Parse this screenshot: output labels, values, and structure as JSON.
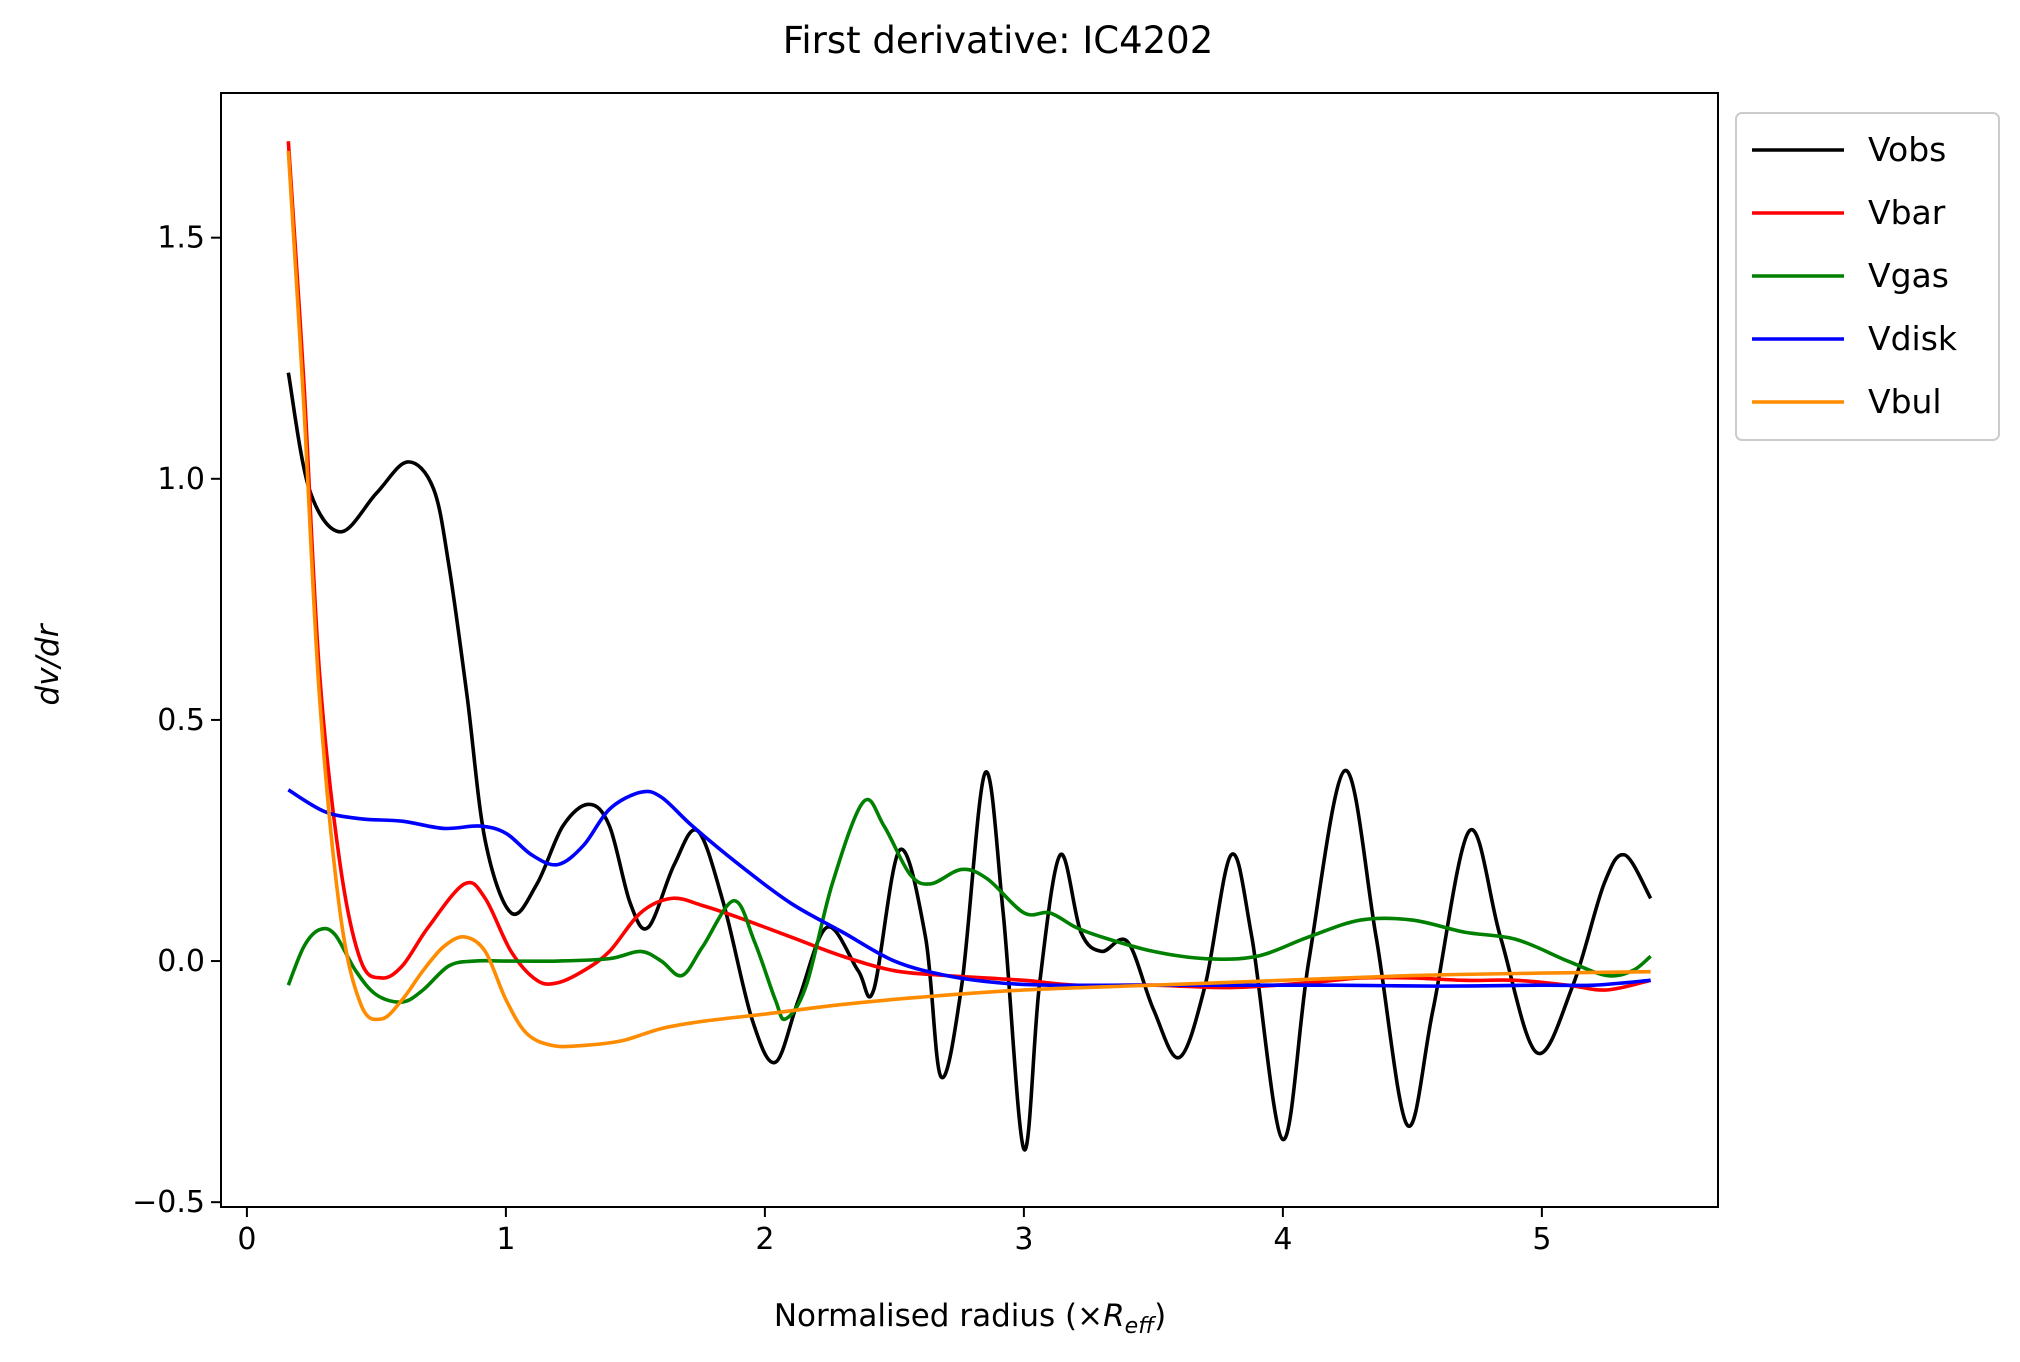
{
  "chart_data": {
    "type": "line",
    "title": "First derivative: IC4202",
    "xlabel": "Normalised radius (×R_eff)",
    "xlabel_parts": {
      "main": "Normalised radius (×",
      "symbol": "R",
      "subscript": "eff",
      "close": ")"
    },
    "ylabel": "dv/dr",
    "xlim": [
      -0.1,
      5.68
    ],
    "ylim": [
      -0.51,
      1.8
    ],
    "xticks": [
      {
        "value": 0,
        "label": "0"
      },
      {
        "value": 1,
        "label": "1"
      },
      {
        "value": 2,
        "label": "2"
      },
      {
        "value": 3,
        "label": "3"
      },
      {
        "value": 4,
        "label": "4"
      },
      {
        "value": 5,
        "label": "5"
      }
    ],
    "yticks": [
      {
        "value": -0.5,
        "label": "−0.5"
      },
      {
        "value": 0.0,
        "label": "0.0"
      },
      {
        "value": 0.5,
        "label": "0.5"
      },
      {
        "value": 1.0,
        "label": "1.0"
      },
      {
        "value": 1.5,
        "label": "1.5"
      }
    ],
    "grid": false,
    "legend_position": "outside-top-right",
    "series": [
      {
        "name": "Vobs",
        "color": "#000000",
        "points": [
          [
            0.16,
            1.22
          ],
          [
            0.24,
            0.98
          ],
          [
            0.36,
            0.89
          ],
          [
            0.5,
            0.97
          ],
          [
            0.62,
            1.035
          ],
          [
            0.72,
            0.98
          ],
          [
            0.78,
            0.82
          ],
          [
            0.85,
            0.55
          ],
          [
            0.92,
            0.25
          ],
          [
            1.02,
            0.1
          ],
          [
            1.12,
            0.16
          ],
          [
            1.22,
            0.28
          ],
          [
            1.32,
            0.325
          ],
          [
            1.4,
            0.28
          ],
          [
            1.48,
            0.12
          ],
          [
            1.55,
            0.07
          ],
          [
            1.65,
            0.2
          ],
          [
            1.74,
            0.27
          ],
          [
            1.84,
            0.12
          ],
          [
            1.95,
            -0.12
          ],
          [
            2.04,
            -0.21
          ],
          [
            2.13,
            -0.08
          ],
          [
            2.24,
            0.07
          ],
          [
            2.36,
            -0.02
          ],
          [
            2.42,
            -0.06
          ],
          [
            2.52,
            0.23
          ],
          [
            2.62,
            0.05
          ],
          [
            2.68,
            -0.24
          ],
          [
            2.76,
            -0.05
          ],
          [
            2.85,
            0.39
          ],
          [
            2.92,
            0.1
          ],
          [
            3.0,
            -0.39
          ],
          [
            3.06,
            -0.05
          ],
          [
            3.14,
            0.22
          ],
          [
            3.22,
            0.06
          ],
          [
            3.3,
            0.02
          ],
          [
            3.4,
            0.04
          ],
          [
            3.5,
            -0.1
          ],
          [
            3.6,
            -0.2
          ],
          [
            3.7,
            -0.05
          ],
          [
            3.8,
            0.22
          ],
          [
            3.88,
            0.05
          ],
          [
            4.0,
            -0.37
          ],
          [
            4.1,
            0.0
          ],
          [
            4.24,
            0.395
          ],
          [
            4.36,
            0.05
          ],
          [
            4.48,
            -0.34
          ],
          [
            4.58,
            -0.1
          ],
          [
            4.72,
            0.27
          ],
          [
            4.84,
            0.05
          ],
          [
            4.98,
            -0.19
          ],
          [
            5.12,
            -0.05
          ],
          [
            5.24,
            0.16
          ],
          [
            5.32,
            0.22
          ],
          [
            5.42,
            0.13
          ]
        ]
      },
      {
        "name": "Vbar",
        "color": "#ff0000",
        "points": [
          [
            0.16,
            1.7
          ],
          [
            0.22,
            1.2
          ],
          [
            0.28,
            0.6
          ],
          [
            0.36,
            0.2
          ],
          [
            0.44,
            0.0
          ],
          [
            0.52,
            -0.035
          ],
          [
            0.6,
            -0.01
          ],
          [
            0.7,
            0.07
          ],
          [
            0.84,
            0.16
          ],
          [
            0.92,
            0.13
          ],
          [
            1.02,
            0.02
          ],
          [
            1.12,
            -0.04
          ],
          [
            1.2,
            -0.045
          ],
          [
            1.3,
            -0.02
          ],
          [
            1.4,
            0.02
          ],
          [
            1.52,
            0.1
          ],
          [
            1.64,
            0.13
          ],
          [
            1.76,
            0.115
          ],
          [
            1.9,
            0.09
          ],
          [
            2.1,
            0.05
          ],
          [
            2.3,
            0.01
          ],
          [
            2.5,
            -0.02
          ],
          [
            2.7,
            -0.03
          ],
          [
            3.0,
            -0.04
          ],
          [
            3.2,
            -0.05
          ],
          [
            3.5,
            -0.05
          ],
          [
            3.8,
            -0.055
          ],
          [
            4.1,
            -0.045
          ],
          [
            4.3,
            -0.035
          ],
          [
            4.5,
            -0.035
          ],
          [
            4.7,
            -0.04
          ],
          [
            4.9,
            -0.04
          ],
          [
            5.1,
            -0.05
          ],
          [
            5.25,
            -0.06
          ],
          [
            5.42,
            -0.04
          ]
        ]
      },
      {
        "name": "Vgas",
        "color": "#008000",
        "points": [
          [
            0.16,
            -0.05
          ],
          [
            0.22,
            0.03
          ],
          [
            0.28,
            0.065
          ],
          [
            0.34,
            0.055
          ],
          [
            0.42,
            -0.02
          ],
          [
            0.5,
            -0.07
          ],
          [
            0.6,
            -0.085
          ],
          [
            0.68,
            -0.06
          ],
          [
            0.78,
            -0.01
          ],
          [
            0.88,
            0.0
          ],
          [
            1.0,
            0.0
          ],
          [
            1.2,
            0.0
          ],
          [
            1.4,
            0.005
          ],
          [
            1.52,
            0.02
          ],
          [
            1.6,
            0.0
          ],
          [
            1.68,
            -0.03
          ],
          [
            1.76,
            0.03
          ],
          [
            1.88,
            0.125
          ],
          [
            1.96,
            0.04
          ],
          [
            2.04,
            -0.08
          ],
          [
            2.08,
            -0.12
          ],
          [
            2.16,
            -0.05
          ],
          [
            2.26,
            0.16
          ],
          [
            2.38,
            0.33
          ],
          [
            2.46,
            0.28
          ],
          [
            2.56,
            0.18
          ],
          [
            2.64,
            0.16
          ],
          [
            2.76,
            0.19
          ],
          [
            2.86,
            0.17
          ],
          [
            3.0,
            0.1
          ],
          [
            3.1,
            0.1
          ],
          [
            3.2,
            0.07
          ],
          [
            3.3,
            0.05
          ],
          [
            3.5,
            0.02
          ],
          [
            3.7,
            0.005
          ],
          [
            3.9,
            0.01
          ],
          [
            4.1,
            0.05
          ],
          [
            4.3,
            0.085
          ],
          [
            4.5,
            0.085
          ],
          [
            4.7,
            0.06
          ],
          [
            4.9,
            0.045
          ],
          [
            5.1,
            0.0
          ],
          [
            5.25,
            -0.03
          ],
          [
            5.35,
            -0.02
          ],
          [
            5.42,
            0.01
          ]
        ]
      },
      {
        "name": "Vdisk",
        "color": "#0000ff",
        "points": [
          [
            0.16,
            0.355
          ],
          [
            0.3,
            0.31
          ],
          [
            0.44,
            0.295
          ],
          [
            0.6,
            0.29
          ],
          [
            0.76,
            0.275
          ],
          [
            0.9,
            0.28
          ],
          [
            1.0,
            0.265
          ],
          [
            1.1,
            0.22
          ],
          [
            1.2,
            0.2
          ],
          [
            1.3,
            0.24
          ],
          [
            1.4,
            0.315
          ],
          [
            1.52,
            0.35
          ],
          [
            1.6,
            0.34
          ],
          [
            1.72,
            0.28
          ],
          [
            1.9,
            0.2
          ],
          [
            2.1,
            0.12
          ],
          [
            2.3,
            0.06
          ],
          [
            2.5,
            0.0
          ],
          [
            2.7,
            -0.03
          ],
          [
            2.9,
            -0.045
          ],
          [
            3.1,
            -0.05
          ],
          [
            3.4,
            -0.05
          ],
          [
            3.8,
            -0.05
          ],
          [
            4.2,
            -0.05
          ],
          [
            4.6,
            -0.052
          ],
          [
            5.0,
            -0.05
          ],
          [
            5.2,
            -0.05
          ],
          [
            5.42,
            -0.04
          ]
        ]
      },
      {
        "name": "Vbul",
        "color": "#ff8c00",
        "points": [
          [
            0.16,
            1.68
          ],
          [
            0.22,
            1.15
          ],
          [
            0.28,
            0.55
          ],
          [
            0.36,
            0.1
          ],
          [
            0.44,
            -0.09
          ],
          [
            0.52,
            -0.12
          ],
          [
            0.6,
            -0.08
          ],
          [
            0.68,
            -0.02
          ],
          [
            0.76,
            0.03
          ],
          [
            0.84,
            0.05
          ],
          [
            0.92,
            0.02
          ],
          [
            1.0,
            -0.08
          ],
          [
            1.08,
            -0.15
          ],
          [
            1.18,
            -0.175
          ],
          [
            1.3,
            -0.175
          ],
          [
            1.45,
            -0.165
          ],
          [
            1.6,
            -0.14
          ],
          [
            1.76,
            -0.125
          ],
          [
            2.0,
            -0.11
          ],
          [
            2.3,
            -0.09
          ],
          [
            2.6,
            -0.075
          ],
          [
            3.0,
            -0.06
          ],
          [
            3.5,
            -0.05
          ],
          [
            4.0,
            -0.04
          ],
          [
            4.5,
            -0.03
          ],
          [
            5.0,
            -0.025
          ],
          [
            5.42,
            -0.022
          ]
        ]
      }
    ]
  }
}
